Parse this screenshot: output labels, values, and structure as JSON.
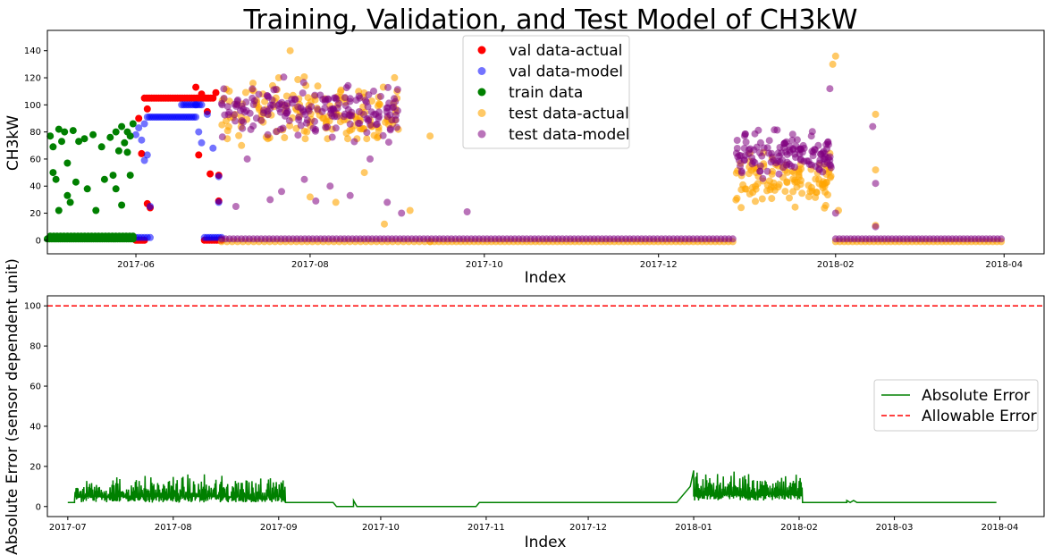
{
  "chart_data": [
    {
      "type": "scatter",
      "title": "Training, Validation, and Test Model of CH3kW",
      "xlabel": "Index",
      "ylabel": "CH3kW",
      "x_ticks": [
        "2017-06",
        "2017-08",
        "2017-10",
        "2017-12",
        "2018-02",
        "2018-04"
      ],
      "y_ticks": [
        0,
        20,
        40,
        60,
        80,
        100,
        120,
        140
      ],
      "xlim": [
        "2017-05-01",
        "2018-04-15"
      ],
      "ylim": [
        -10,
        155
      ],
      "grid": false,
      "legend_position": "upper center",
      "series": [
        {
          "name": "val data-actual",
          "color": "#ff0000",
          "alpha": 1.0,
          "segments": [
            {
              "start": "2017-06-01",
              "end": "2017-06-04",
              "value": 0,
              "count": 6
            },
            {
              "start": "2017-06-04",
              "end": "2017-06-28",
              "value": 105,
              "count": 30
            },
            {
              "start": "2017-06-25",
              "end": "2017-07-01",
              "value": 0,
              "count": 8
            }
          ],
          "points": [
            [
              "2017-06-02",
              90
            ],
            [
              "2017-06-03",
              64
            ],
            [
              "2017-06-05",
              97
            ],
            [
              "2017-06-05",
              27
            ],
            [
              "2017-06-06",
              24
            ],
            [
              "2017-06-22",
              113
            ],
            [
              "2017-06-23",
              63
            ],
            [
              "2017-06-24",
              108
            ],
            [
              "2017-06-26",
              95
            ],
            [
              "2017-06-27",
              49
            ],
            [
              "2017-06-29",
              109
            ],
            [
              "2017-06-30",
              48
            ],
            [
              "2017-06-30",
              29
            ]
          ]
        },
        {
          "name": "val data-model",
          "color": "#0000ff",
          "alpha": 0.55,
          "segments": [
            {
              "start": "2017-06-01",
              "end": "2017-06-06",
              "value": 2,
              "count": 6
            },
            {
              "start": "2017-06-05",
              "end": "2017-06-22",
              "value": 91,
              "count": 24
            },
            {
              "start": "2017-06-17",
              "end": "2017-06-24",
              "value": 100,
              "count": 10
            },
            {
              "start": "2017-06-25",
              "end": "2017-07-01",
              "value": 2,
              "count": 8
            }
          ],
          "points": [
            [
              "2017-06-01",
              78
            ],
            [
              "2017-06-02",
              83
            ],
            [
              "2017-06-03",
              74
            ],
            [
              "2017-06-04",
              86
            ],
            [
              "2017-06-04",
              59
            ],
            [
              "2017-06-05",
              63
            ],
            [
              "2017-06-06",
              25
            ],
            [
              "2017-06-22",
              100
            ],
            [
              "2017-06-23",
              80
            ],
            [
              "2017-06-24",
              72
            ],
            [
              "2017-06-26",
              93
            ],
            [
              "2017-06-28",
              68
            ],
            [
              "2017-06-30",
              47
            ],
            [
              "2017-06-30",
              28
            ]
          ]
        },
        {
          "name": "train data",
          "color": "#008000",
          "alpha": 1.0,
          "segments": [
            {
              "start": "2017-05-01",
              "end": "2017-05-31",
              "value": 1,
              "count": 40
            },
            {
              "start": "2017-05-02",
              "end": "2017-05-31",
              "value": 3,
              "count": 25
            }
          ],
          "points": [
            [
              "2017-05-02",
              77
            ],
            [
              "2017-05-03",
              69
            ],
            [
              "2017-05-03",
              50
            ],
            [
              "2017-05-04",
              45
            ],
            [
              "2017-05-05",
              82
            ],
            [
              "2017-05-06",
              73
            ],
            [
              "2017-05-07",
              80
            ],
            [
              "2017-05-08",
              57
            ],
            [
              "2017-05-08",
              33
            ],
            [
              "2017-05-10",
              81
            ],
            [
              "2017-05-11",
              43
            ],
            [
              "2017-05-12",
              73
            ],
            [
              "2017-05-14",
              75
            ],
            [
              "2017-05-15",
              38
            ],
            [
              "2017-05-17",
              78
            ],
            [
              "2017-05-18",
              22
            ],
            [
              "2017-05-20",
              69
            ],
            [
              "2017-05-23",
              76
            ],
            [
              "2017-05-24",
              48
            ],
            [
              "2017-05-25",
              80
            ],
            [
              "2017-05-25",
              38
            ],
            [
              "2017-05-26",
              66
            ],
            [
              "2017-05-27",
              84
            ],
            [
              "2017-05-27",
              26
            ],
            [
              "2017-05-28",
              72
            ],
            [
              "2017-05-29",
              80
            ],
            [
              "2017-05-29",
              65
            ],
            [
              "2017-05-30",
              77
            ],
            [
              "2017-05-30",
              48
            ],
            [
              "2017-05-31",
              86
            ],
            [
              "2017-05-05",
              22
            ],
            [
              "2017-05-09",
              28
            ],
            [
              "2017-05-21",
              45
            ]
          ]
        },
        {
          "name": "test data-actual",
          "color": "#ffa500",
          "alpha": 0.6,
          "segments": [
            {
              "start": "2017-07-01",
              "end": "2017-09-12",
              "value": -1,
              "count": 40
            },
            {
              "start": "2017-09-12",
              "end": "2017-12-27",
              "value": -1,
              "count": 70
            },
            {
              "start": "2018-02-01",
              "end": "2018-03-31",
              "value": -1,
              "count": 40
            }
          ],
          "bands": [
            {
              "start": "2017-07-01",
              "end": "2017-09-01",
              "center": 94,
              "spread": 16,
              "min": 75,
              "max": 147,
              "count": 160
            },
            {
              "start": "2017-12-28",
              "end": "2018-01-31",
              "center": 45,
              "spread": 13,
              "min": 20,
              "max": 95,
              "count": 110
            }
          ],
          "points": [
            [
              "2017-07-08",
              70
            ],
            [
              "2017-07-12",
              116
            ],
            [
              "2017-07-25",
              140
            ],
            [
              "2017-08-01",
              32
            ],
            [
              "2017-08-10",
              28
            ],
            [
              "2017-08-18",
              110
            ],
            [
              "2017-08-20",
              50
            ],
            [
              "2017-08-27",
              12
            ],
            [
              "2017-09-05",
              22
            ],
            [
              "2017-09-12",
              77
            ],
            [
              "2018-01-31",
              130
            ],
            [
              "2018-02-01",
              136
            ],
            [
              "2018-02-02",
              22
            ],
            [
              "2018-02-15",
              93
            ],
            [
              "2018-02-15",
              52
            ],
            [
              "2018-02-15",
              11
            ]
          ]
        },
        {
          "name": "test data-model",
          "color": "#800080",
          "alpha": 0.55,
          "segments": [
            {
              "start": "2017-07-01",
              "end": "2017-12-27",
              "value": 1,
              "count": 130
            },
            {
              "start": "2018-02-01",
              "end": "2018-03-31",
              "value": 1,
              "count": 45
            }
          ],
          "bands": [
            {
              "start": "2017-07-01",
              "end": "2017-09-01",
              "center": 96,
              "spread": 13,
              "min": 72,
              "max": 125,
              "count": 180
            },
            {
              "start": "2017-12-28",
              "end": "2018-01-31",
              "center": 62,
              "spread": 11,
              "min": 35,
              "max": 95,
              "count": 130
            }
          ],
          "points": [
            [
              "2017-07-06",
              25
            ],
            [
              "2017-07-10",
              60
            ],
            [
              "2017-07-18",
              30
            ],
            [
              "2017-07-22",
              36
            ],
            [
              "2017-07-30",
              45
            ],
            [
              "2017-08-03",
              29
            ],
            [
              "2017-08-08",
              40
            ],
            [
              "2017-08-15",
              33
            ],
            [
              "2017-08-22",
              60
            ],
            [
              "2017-08-28",
              28
            ],
            [
              "2017-09-02",
              20
            ],
            [
              "2017-09-25",
              21
            ],
            [
              "2018-01-30",
              112
            ],
            [
              "2018-02-01",
              20
            ],
            [
              "2018-02-14",
              84
            ],
            [
              "2018-02-15",
              42
            ],
            [
              "2018-02-15",
              10
            ]
          ]
        }
      ]
    },
    {
      "type": "line",
      "xlabel": "Index",
      "ylabel": "Absolute Error (sensor dependent unit)",
      "x_ticks": [
        "2017-07",
        "2017-08",
        "2017-09",
        "2017-10",
        "2017-11",
        "2017-12",
        "2018-01",
        "2018-02",
        "2018-03",
        "2018-04"
      ],
      "y_ticks": [
        0,
        20,
        40,
        60,
        80,
        100
      ],
      "xlim": [
        "2017-06-25",
        "2018-04-14"
      ],
      "ylim": [
        -5,
        105
      ],
      "grid": false,
      "legend_position": "center right",
      "series": [
        {
          "name": "Absolute Error",
          "color": "#008000",
          "style": "solid",
          "noisy_ranges": [
            {
              "start": "2017-07-03",
              "end": "2017-09-03",
              "base": 2,
              "peak": 21,
              "typical": 9
            },
            {
              "start": "2018-01-01",
              "end": "2018-02-02",
              "base": 3,
              "peak": 18,
              "typical": 11
            }
          ],
          "points": [
            [
              "2017-07-01",
              2
            ],
            [
              "2017-07-03",
              2
            ],
            [
              "2017-09-03",
              2
            ],
            [
              "2017-09-04",
              2
            ],
            [
              "2017-09-17",
              2
            ],
            [
              "2017-09-18",
              0
            ],
            [
              "2017-09-23",
              0
            ],
            [
              "2017-09-23",
              3
            ],
            [
              "2017-09-24",
              0
            ],
            [
              "2017-10-29",
              0
            ],
            [
              "2017-10-30",
              2
            ],
            [
              "2017-12-27",
              2
            ],
            [
              "2017-12-31",
              10
            ],
            [
              "2018-01-01",
              18
            ],
            [
              "2018-02-02",
              2
            ],
            [
              "2018-02-15",
              2
            ],
            [
              "2018-02-15",
              3
            ],
            [
              "2018-02-16",
              2
            ],
            [
              "2018-02-17",
              3
            ],
            [
              "2018-02-18",
              2
            ],
            [
              "2018-03-31",
              2
            ]
          ]
        },
        {
          "name": "Allowable Error",
          "color": "#ff0000",
          "style": "dashed",
          "value": 100
        }
      ]
    }
  ]
}
